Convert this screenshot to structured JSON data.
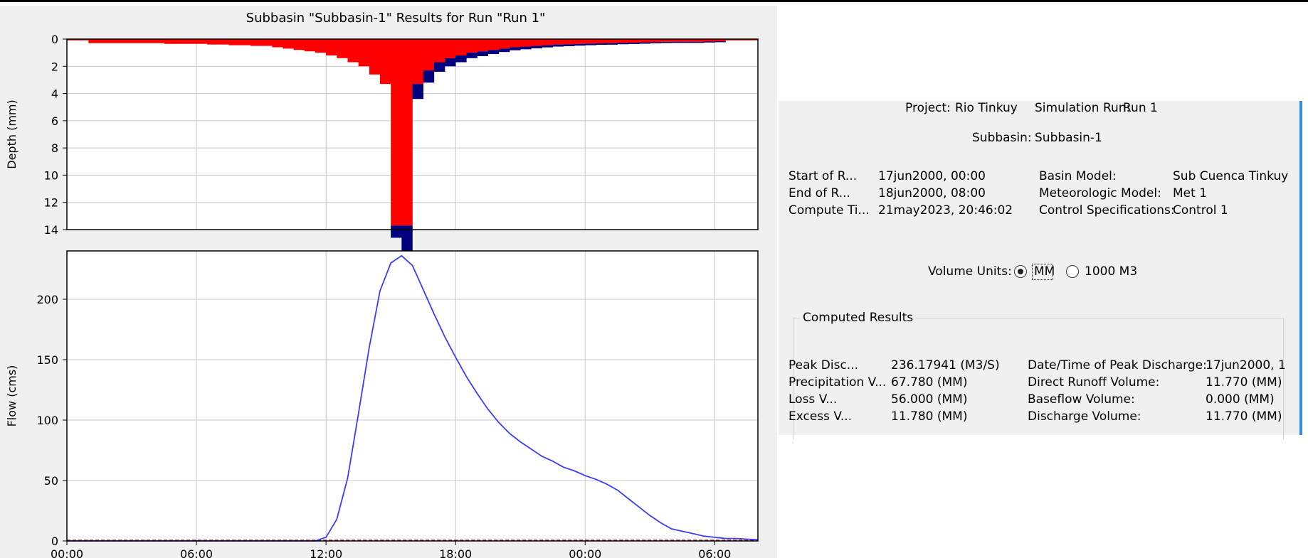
{
  "chart_data": [
    {
      "type": "bar",
      "title": "Subbasin \"Subbasin-1\" Results for Run \"Run 1\"",
      "ylabel": "Depth (mm)",
      "y_inverted": true,
      "ylim": [
        0,
        14
      ],
      "yticks": [
        "0",
        "2",
        "4",
        "6",
        "8",
        "10",
        "12",
        "14"
      ],
      "x_start_hour": 0,
      "step_hours": 0.5,
      "series": [
        {
          "color": "#ff0000",
          "values": [
            0,
            0,
            0.3,
            0.3,
            0.3,
            0.3,
            0.3,
            0.3,
            0.3,
            0.35,
            0.35,
            0.35,
            0.35,
            0.4,
            0.4,
            0.45,
            0.45,
            0.5,
            0.5,
            0.6,
            0.7,
            0.8,
            0.9,
            1.0,
            1.2,
            1.4,
            1.7,
            2.0,
            2.6,
            3.3,
            13.7,
            13.7,
            3.3,
            2.3,
            1.7,
            1.4,
            1.2,
            1.0,
            0.9,
            0.8,
            0.7,
            0.6,
            0.55,
            0.5,
            0.45,
            0.4,
            0.38,
            0.35,
            0.33,
            0.3,
            0.3,
            0.28,
            0.26,
            0.24,
            0.22,
            0.2,
            0.2,
            0.2,
            0.2,
            0.18,
            0.16,
            0,
            0,
            0,
            0,
            0,
            0,
            0,
            0,
            0,
            0,
            0,
            0,
            0,
            0,
            0,
            0,
            0,
            0,
            0,
            0,
            0,
            0,
            0,
            0,
            0,
            0,
            0,
            0,
            0,
            0,
            0,
            0,
            0,
            0,
            0,
            0
          ]
        },
        {
          "color": "#00007f",
          "values": [
            0,
            0,
            0,
            0,
            0,
            0,
            0,
            0,
            0,
            0,
            0,
            0,
            0,
            0,
            0,
            0,
            0,
            0,
            0,
            0,
            0,
            0,
            0,
            0,
            0,
            0,
            0,
            0,
            0,
            0,
            0.9,
            3.1,
            1.1,
            0.9,
            0.7,
            0.6,
            0.5,
            0.4,
            0.35,
            0.3,
            0.25,
            0.22,
            0.2,
            0.18,
            0.16,
            0.15,
            0.14,
            0.13,
            0.12,
            0.12,
            0.11,
            0.1,
            0.1,
            0.1,
            0.09,
            0.09,
            0.08,
            0.08,
            0.08,
            0.07,
            0.07,
            0,
            0,
            0,
            0,
            0,
            0,
            0,
            0,
            0,
            0,
            0,
            0,
            0,
            0,
            0,
            0,
            0,
            0,
            0,
            0,
            0,
            0,
            0,
            0,
            0,
            0,
            0,
            0,
            0,
            0,
            0,
            0,
            0,
            0,
            0,
            0
          ]
        }
      ]
    },
    {
      "type": "line",
      "ylabel": "Flow (cms)",
      "ylim": [
        0,
        240
      ],
      "yticks": [
        "0",
        "50",
        "100",
        "150",
        "200"
      ],
      "xticks": [
        "00:00",
        "06:00",
        "12:00",
        "18:00",
        "00:00",
        "06:00"
      ],
      "xlim_hours": [
        0,
        32
      ],
      "series": [
        {
          "color": "#3c3cff",
          "x_hours": [
            0,
            11.5,
            12,
            12.5,
            13,
            13.5,
            14,
            14.5,
            15,
            15.5,
            16,
            16.5,
            17,
            17.5,
            18,
            18.5,
            19,
            19.5,
            20,
            20.5,
            21,
            21.5,
            22,
            22.5,
            23,
            23.5,
            24,
            24.5,
            25,
            25.5,
            26,
            26.5,
            27,
            27.5,
            28,
            28.5,
            29,
            29.5,
            30,
            30.5,
            31,
            31.5,
            32
          ],
          "y": [
            0,
            0,
            3,
            18,
            52,
            105,
            160,
            207,
            230,
            236,
            228,
            208,
            188,
            169,
            152,
            136,
            122,
            109,
            98,
            89,
            82,
            76,
            70,
            66,
            61,
            58,
            54,
            51,
            47,
            42,
            35,
            28,
            21,
            15,
            10,
            8,
            6,
            4,
            3,
            2,
            2,
            1.5,
            1
          ]
        }
      ]
    }
  ],
  "summary": {
    "project_label": "Project:",
    "project_value": "Rio Tinkuy",
    "run_label": "Simulation Run:",
    "run_value": "Run 1",
    "subbasin_label": "Subbasin:",
    "subbasin_value": "Subbasin-1",
    "info_rows": [
      {
        "label": "Start of R...",
        "value": "17jun2000, 00:00",
        "label2": "Basin Model:",
        "value2": "Sub Cuenca Tinkuy"
      },
      {
        "label": "End of R...",
        "value": "18jun2000, 08:00",
        "label2": "Meteorologic Model:",
        "value2": "Met 1"
      },
      {
        "label": "Compute Ti...",
        "value": "21may2023, 20:46:02",
        "label2": "Control Specifications:",
        "value2": "Control 1"
      }
    ],
    "volume_units_label": "Volume Units:",
    "unit_mm": "MM",
    "unit_1000m3": "1000 M3",
    "unit_selected": "MM",
    "computed_results_title": "Computed Results",
    "results": [
      {
        "label": "Peak Disc...",
        "value": "236.17941 (M3/S)",
        "label2": "Date/Time of Peak Discharge:",
        "value2": "17jun2000, 1"
      },
      {
        "label": "Precipitation V...",
        "value": "67.780 (MM)",
        "label2": "Direct Runoff Volume:",
        "value2": "11.770 (MM)"
      },
      {
        "label": "Loss V...",
        "value": "56.000 (MM)",
        "label2": "Baseflow Volume:",
        "value2": "0.000 (MM)"
      },
      {
        "label": "Excess V...",
        "value": "11.780 (MM)",
        "label2": "Discharge Volume:",
        "value2": "11.770 (MM)"
      }
    ]
  }
}
